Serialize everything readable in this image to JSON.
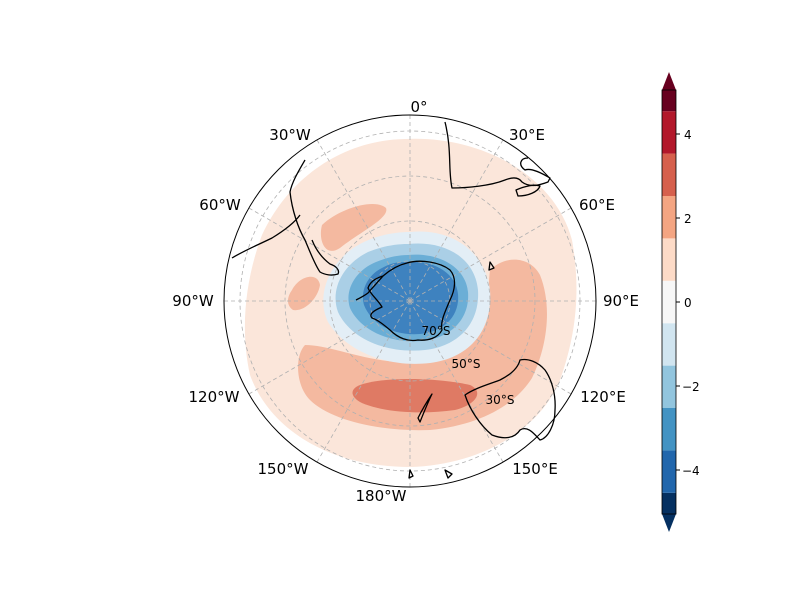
{
  "map": {
    "longitude_labels": [
      "0°",
      "30°E",
      "60°E",
      "90°E",
      "120°E",
      "150°E",
      "180°W",
      "150°W",
      "120°W",
      "90°W",
      "60°W",
      "30°W"
    ],
    "latitude_labels": [
      "70°S",
      "50°S",
      "30°S"
    ],
    "projection": "south-polar-stereographic"
  },
  "colorbar": {
    "tick_labels": [
      "4",
      "2",
      "0",
      "−2",
      "−4"
    ],
    "levels": [
      -5,
      -4.5,
      -3.5,
      -2.5,
      -1.5,
      -0.5,
      0.5,
      1.5,
      2.5,
      3.5,
      4.5,
      5
    ],
    "colors": [
      "#053061",
      "#2166ac",
      "#4393c3",
      "#92c5de",
      "#d1e5f0",
      "#f7f7f7",
      "#fddbc7",
      "#f4a582",
      "#d6604d",
      "#b2182b",
      "#67001f"
    ]
  }
}
